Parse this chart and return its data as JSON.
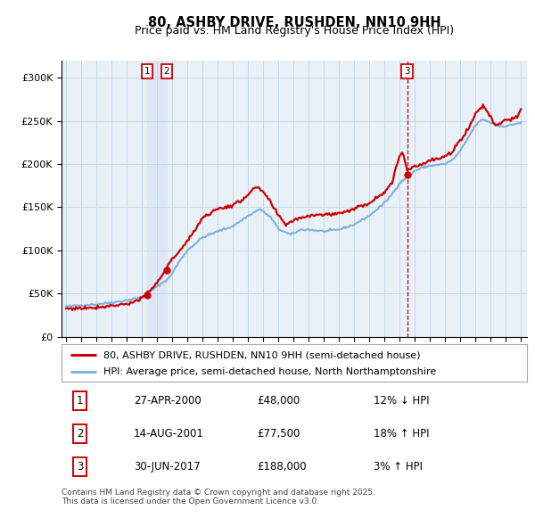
{
  "title": "80, ASHBY DRIVE, RUSHDEN, NN10 9HH",
  "subtitle": "Price paid vs. HM Land Registry's House Price Index (HPI)",
  "legend_line1": "80, ASHBY DRIVE, RUSHDEN, NN10 9HH (semi-detached house)",
  "legend_line2": "HPI: Average price, semi-detached house, North Northamptonshire",
  "footer": "Contains HM Land Registry data © Crown copyright and database right 2025.\nThis data is licensed under the Open Government Licence v3.0.",
  "transactions": [
    {
      "num": "1",
      "date_str": "27-APR-2000",
      "year": 2000.333,
      "price": 48000,
      "hpi_text": "12% ↓ HPI"
    },
    {
      "num": "2",
      "date_str": "14-AUG-2001",
      "year": 2001.625,
      "price": 77500,
      "hpi_text": "18% ↑ HPI"
    },
    {
      "num": "3",
      "date_str": "30-JUN-2017",
      "year": 2017.5,
      "price": 188000,
      "hpi_text": "3% ↑ HPI"
    }
  ],
  "red_color": "#cc0000",
  "blue_color": "#7aaddb",
  "shade_color": "#dce8f5",
  "plot_bg": "#e8f0f8",
  "grid_color": "#c8d8e8",
  "ylim": [
    0,
    320000
  ],
  "yticks": [
    0,
    50000,
    100000,
    150000,
    200000,
    250000,
    300000
  ],
  "xmin": 1994.7,
  "xmax": 2025.4,
  "xticks": [
    1995,
    1996,
    1997,
    1998,
    1999,
    2000,
    2001,
    2002,
    2003,
    2004,
    2005,
    2006,
    2007,
    2008,
    2009,
    2010,
    2011,
    2012,
    2013,
    2014,
    2015,
    2016,
    2017,
    2018,
    2019,
    2020,
    2021,
    2022,
    2023,
    2024,
    2025
  ]
}
